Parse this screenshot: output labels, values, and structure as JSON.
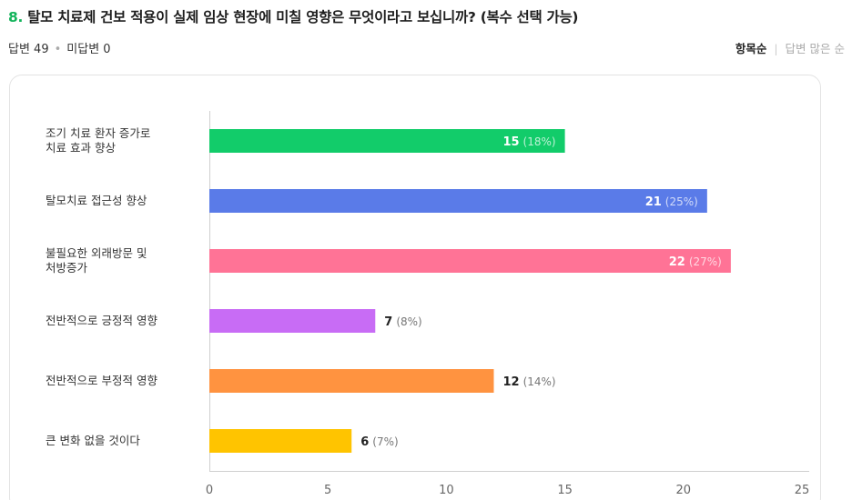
{
  "header": {
    "number": "8.",
    "title": "탈모 치료제 건보 적용이 실제 임상 현장에 미칠 영향은 무엇이라고 보십니까? (복수 선택 가능)"
  },
  "meta": {
    "answered": "답변 49",
    "unanswered": "미답변 0"
  },
  "sort": {
    "by_item": "항목순",
    "by_count": "답변 많은 순"
  },
  "chart_data": {
    "type": "bar",
    "orientation": "horizontal",
    "categories": [
      "조기 치료 환자 증가로 치료 효과 향상",
      "탈모치료 접근성 향상",
      "불필요한 외래방문 및 처방증가",
      "전반적으로 긍정적 영향",
      "전반적으로 부정적 영향",
      "큰 변화 없을 것이다"
    ],
    "values": [
      15,
      21,
      22,
      7,
      12,
      6
    ],
    "percents": [
      "(18%)",
      "(25%)",
      "(27%)",
      "(8%)",
      "(14%)",
      "(7%)"
    ],
    "colors": [
      "#12cc6a",
      "#5a7be8",
      "#ff7396",
      "#c86cf5",
      "#ff9340",
      "#ffc400"
    ],
    "xlim": [
      0,
      25
    ],
    "xticks": [
      0,
      5,
      10,
      15,
      20,
      25
    ],
    "label_inside_threshold": 14
  }
}
